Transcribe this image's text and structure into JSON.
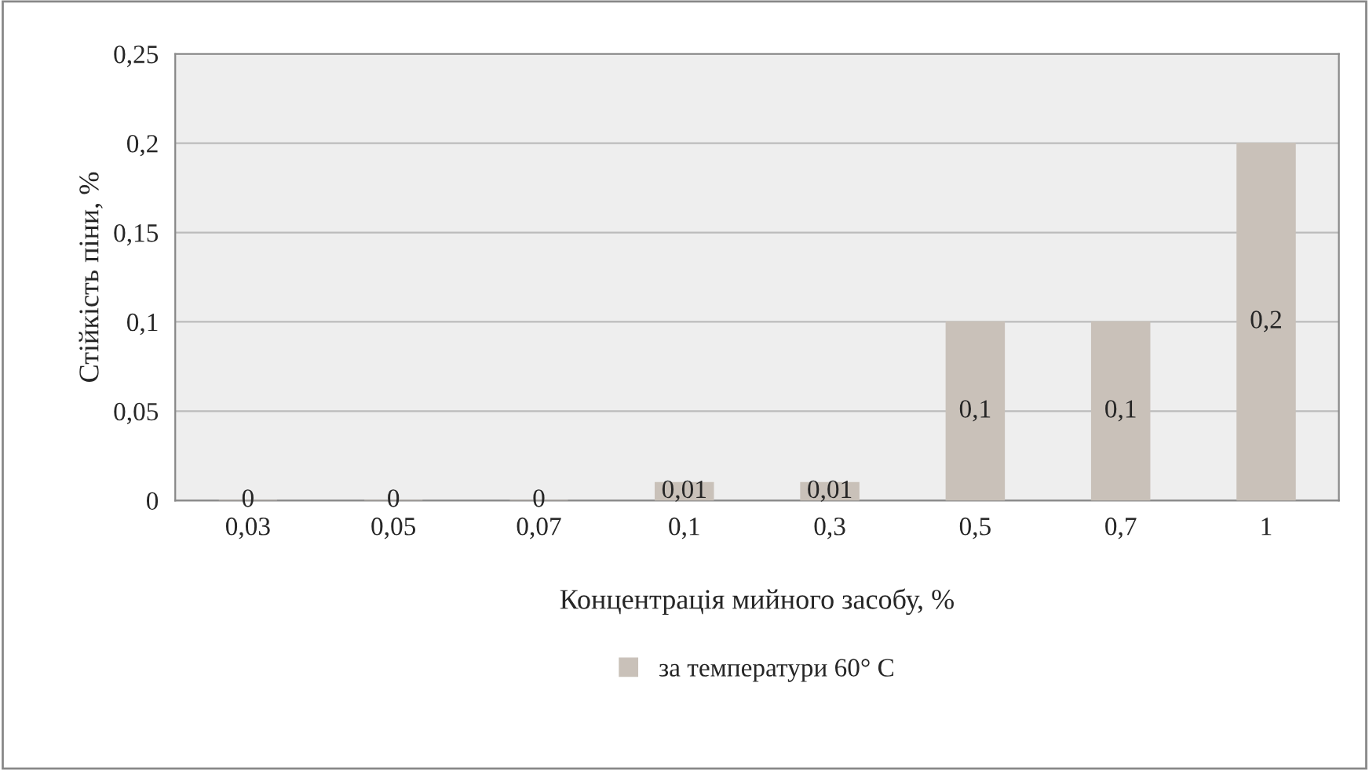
{
  "chart_data": {
    "type": "bar",
    "xlabel": "Концентрація мийного засобу, %",
    "ylabel": "Стійкість піни, %",
    "categories": [
      "0,03",
      "0,05",
      "0,07",
      "0,1",
      "0,3",
      "0,5",
      "0,7",
      "1"
    ],
    "series": [
      {
        "name": "за температури 60° C",
        "color": "#c9c1b9",
        "values": [
          0,
          0,
          0,
          0.01,
          0.01,
          0.1,
          0.1,
          0.2
        ],
        "value_labels": [
          "0",
          "0",
          "0",
          "0,01",
          "0,01",
          "0,1",
          "0,1",
          "0,2"
        ]
      }
    ],
    "ylim": [
      0,
      0.25
    ],
    "yticks": [
      {
        "value": 0,
        "label": "0"
      },
      {
        "value": 0.05,
        "label": "0,05"
      },
      {
        "value": 0.1,
        "label": "0,1"
      },
      {
        "value": 0.15,
        "label": "0,15"
      },
      {
        "value": 0.2,
        "label": "0,2"
      },
      {
        "value": 0.25,
        "label": "0,25"
      }
    ],
    "grid": "y",
    "legend": "bottom"
  }
}
